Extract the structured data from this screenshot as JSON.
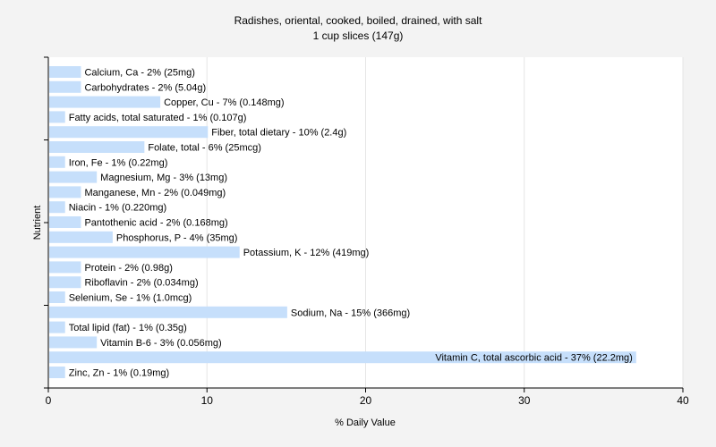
{
  "chart_data": {
    "type": "bar",
    "orientation": "horizontal",
    "title": "Radishes, oriental, cooked, boiled, drained, with salt",
    "subtitle": "1 cup slices (147g)",
    "xlabel": "% Daily Value",
    "ylabel": "Nutrient",
    "xlim": [
      0,
      40
    ],
    "xticks": [
      "0",
      "10",
      "20",
      "30",
      "40"
    ],
    "grid": true,
    "bar_color": "#c6dffb",
    "categories": [
      "Calcium, Ca",
      "Carbohydrates",
      "Copper, Cu",
      "Fatty acids, total saturated",
      "Fiber, total dietary",
      "Folate, total",
      "Iron, Fe",
      "Magnesium, Mg",
      "Manganese, Mn",
      "Niacin",
      "Pantothenic acid",
      "Phosphorus, P",
      "Potassium, K",
      "Protein",
      "Riboflavin",
      "Selenium, Se",
      "Sodium, Na",
      "Total lipid (fat)",
      "Vitamin B-6",
      "Vitamin C, total ascorbic acid",
      "Zinc, Zn"
    ],
    "values": [
      2,
      2,
      7,
      1,
      10,
      6,
      1,
      3,
      2,
      1,
      2,
      4,
      12,
      2,
      2,
      1,
      15,
      1,
      3,
      37,
      1
    ],
    "labels": [
      "Calcium, Ca - 2% (25mg)",
      "Carbohydrates - 2% (5.04g)",
      "Copper, Cu - 7% (0.148mg)",
      "Fatty acids, total saturated - 1% (0.107g)",
      "Fiber, total dietary - 10% (2.4g)",
      "Folate, total - 6% (25mcg)",
      "Iron, Fe - 1% (0.22mg)",
      "Magnesium, Mg - 3% (13mg)",
      "Manganese, Mn - 2% (0.049mg)",
      "Niacin - 1% (0.220mg)",
      "Pantothenic acid - 2% (0.168mg)",
      "Phosphorus, P - 4% (35mg)",
      "Potassium, K - 12% (419mg)",
      "Protein - 2% (0.98g)",
      "Riboflavin - 2% (0.034mg)",
      "Selenium, Se - 1% (1.0mcg)",
      "Sodium, Na - 15% (366mg)",
      "Total lipid (fat) - 1% (0.35g)",
      "Vitamin B-6 - 3% (0.056mg)",
      "Vitamin C, total ascorbic acid - 37% (22.2mg)",
      "Zinc, Zn - 1% (0.19mg)"
    ]
  }
}
